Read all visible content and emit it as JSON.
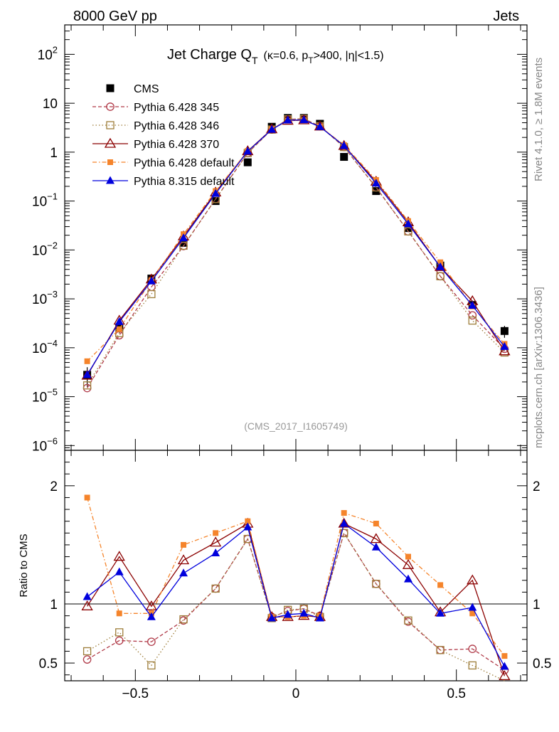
{
  "header": {
    "left": "8000 GeV pp",
    "right": "Jets"
  },
  "side": {
    "rivet": "Rivet 4.1.0, ≥ 1.8M events",
    "mcplots": "mcplots.cern.ch [arXiv:1306.3436]"
  },
  "watermark": "(CMS_2017_I1605749)",
  "title": {
    "main": "Jet Charge Q",
    "sub": "T",
    "cuts_prefix": "(κ=0.6, p",
    "cuts_sub": "T",
    "cuts_suffix": ">400, |η|<1.5)"
  },
  "ratio_label": "Ratio to CMS",
  "colors": {
    "cms": "#000000",
    "p345": "#b03a48",
    "p346": "#9e7e3a",
    "p370": "#8b0000",
    "p6def": "#f5842b",
    "p8": "#0000dd"
  },
  "chart_data": {
    "type": "scatter",
    "x": [
      -0.65,
      -0.55,
      -0.45,
      -0.35,
      -0.25,
      -0.15,
      -0.075,
      -0.025,
      0.025,
      0.075,
      0.15,
      0.25,
      0.35,
      0.45,
      0.55,
      0.65
    ],
    "xlim": [
      -0.72,
      0.72
    ],
    "xticks": [
      {
        "v": -0.5,
        "label": "−0.5"
      },
      {
        "v": 0,
        "label": "0"
      },
      {
        "v": 0.5,
        "label": "0.5"
      }
    ],
    "main": {
      "yscale": "log",
      "ylim": [
        8e-07,
        400
      ],
      "yticks": [
        {
          "v": 1e-06,
          "base": "10",
          "exp": "−6"
        },
        {
          "v": 1e-05,
          "base": "10",
          "exp": "−5"
        },
        {
          "v": 0.0001,
          "base": "10",
          "exp": "−4"
        },
        {
          "v": 0.001,
          "base": "10",
          "exp": "−3"
        },
        {
          "v": 0.01,
          "base": "10",
          "exp": "−2"
        },
        {
          "v": 0.1,
          "base": "10",
          "exp": "−1"
        },
        {
          "v": 1,
          "base": "1",
          "exp": ""
        },
        {
          "v": 10,
          "base": "10",
          "exp": ""
        },
        {
          "v": 100,
          "base": "10",
          "exp": "2"
        }
      ]
    },
    "ratio": {
      "ylim": [
        0.35,
        2.3
      ],
      "yticks": [
        {
          "v": 0.5,
          "label": "0.5"
        },
        {
          "v": 1,
          "label": "1"
        },
        {
          "v": 2,
          "label": "2"
        }
      ]
    },
    "series": [
      {
        "key": "cms",
        "name": "CMS",
        "marker": "square-filled",
        "dash": "",
        "showLine": false,
        "values": [
          2.8e-05,
          0.00026,
          0.0026,
          0.014,
          0.1,
          0.62,
          3.3,
          5.0,
          5.0,
          3.8,
          0.8,
          0.16,
          0.028,
          0.0048,
          0.00075,
          0.00022
        ],
        "errors": [
          1.2e-05,
          6e-05,
          0.0003,
          0.001,
          0.005,
          0.02,
          0.1,
          0.1,
          0.1,
          0.1,
          0.03,
          0.006,
          0.0015,
          0.0004,
          0.00012,
          6e-05
        ],
        "ratios": [
          1,
          1,
          1,
          1,
          1,
          1,
          1,
          1,
          1,
          1,
          1,
          1,
          1,
          1,
          1,
          1
        ]
      },
      {
        "key": "p345",
        "name": "Pythia 6.428 345",
        "marker": "circle-open",
        "dash": "5,3",
        "showLine": true,
        "values": [
          1.5e-05,
          0.00018,
          0.00175,
          0.012,
          0.11,
          0.96,
          2.9,
          4.7,
          4.8,
          3.4,
          1.27,
          0.19,
          0.024,
          0.0029,
          0.00046,
          9.5e-05
        ],
        "ratios": [
          0.53,
          0.69,
          0.68,
          0.86,
          1.13,
          1.55,
          0.89,
          0.94,
          0.96,
          0.9,
          1.6,
          1.17,
          0.85,
          0.61,
          0.62,
          0.44
        ]
      },
      {
        "key": "p346",
        "name": "Pythia 6.428 346",
        "marker": "square-open",
        "dash": "1.5,3",
        "showLine": true,
        "values": [
          1.7e-05,
          0.0002,
          0.00125,
          0.0122,
          0.11,
          0.96,
          2.9,
          4.7,
          4.8,
          3.4,
          1.27,
          0.19,
          0.024,
          0.0029,
          0.00036,
          8e-05
        ],
        "ratios": [
          0.6,
          0.76,
          0.48,
          0.87,
          1.13,
          1.55,
          0.88,
          0.95,
          0.96,
          0.89,
          1.6,
          1.17,
          0.86,
          0.61,
          0.48,
          0.3
        ]
      },
      {
        "key": "p370",
        "name": "Pythia 6.428 370",
        "marker": "triangle-open",
        "dash": "",
        "showLine": true,
        "values": [
          2.7e-05,
          0.00036,
          0.0025,
          0.019,
          0.15,
          1.05,
          2.95,
          4.4,
          4.5,
          3.35,
          1.35,
          0.25,
          0.037,
          0.0045,
          0.0009,
          8.5e-05
        ],
        "ratios": [
          0.98,
          1.4,
          0.98,
          1.37,
          1.52,
          1.68,
          0.89,
          0.89,
          0.9,
          0.89,
          1.68,
          1.55,
          1.33,
          0.93,
          1.2,
          0.39
        ]
      },
      {
        "key": "p6def",
        "name": "Pythia 6.428 default",
        "marker": "square-filled-small",
        "dash": "6,3,1.5,3",
        "showLine": true,
        "values": [
          5.3e-05,
          0.00024,
          0.0024,
          0.021,
          0.16,
          1.06,
          2.95,
          4.4,
          4.5,
          3.35,
          1.4,
          0.27,
          0.039,
          0.0056,
          0.0007,
          0.00012
        ],
        "ratios": [
          1.9,
          0.92,
          0.92,
          1.5,
          1.6,
          1.7,
          0.89,
          0.89,
          0.9,
          0.9,
          1.77,
          1.68,
          1.4,
          1.16,
          0.92,
          0.56
        ]
      },
      {
        "key": "p8",
        "name": "Pythia 8.315 default",
        "marker": "triangle-filled",
        "dash": "",
        "showLine": true,
        "values": [
          2.8e-05,
          0.00034,
          0.0023,
          0.0175,
          0.142,
          1.04,
          2.9,
          4.5,
          4.55,
          3.3,
          1.35,
          0.23,
          0.034,
          0.0045,
          0.00073,
          0.000105
        ],
        "ratios": [
          1.06,
          1.27,
          0.89,
          1.26,
          1.43,
          1.65,
          0.88,
          0.91,
          0.92,
          0.88,
          1.68,
          1.48,
          1.21,
          0.92,
          0.97,
          0.47
        ]
      }
    ]
  }
}
